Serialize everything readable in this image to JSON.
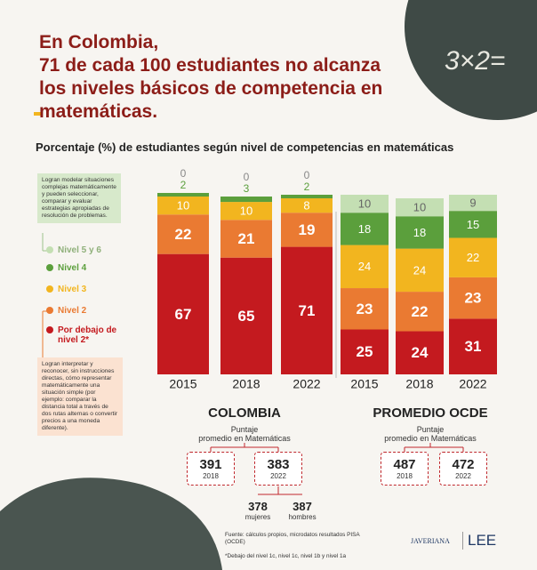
{
  "title_lines": [
    "En Colombia,",
    "71 de cada 100 estudiantes no alcanza",
    "los niveles básicos de competencia en",
    "matemáticas."
  ],
  "decor_text": "3×2=",
  "chart_data": {
    "type": "bar",
    "stacked": true,
    "subtitle": "Porcentaje (%) de estudiantes según nivel de competencias en matemáticas",
    "categories": [
      "2015",
      "2018",
      "2022",
      "2015",
      "2018",
      "2022"
    ],
    "series": [
      {
        "name": "Por debajo de nivel 2*",
        "color": "#c41a1f",
        "values": [
          67,
          65,
          71,
          25,
          24,
          31
        ]
      },
      {
        "name": "Nivel 2",
        "color": "#ea7a32",
        "values": [
          22,
          21,
          19,
          23,
          22,
          23
        ]
      },
      {
        "name": "Nivel 3",
        "color": "#f2b51f",
        "values": [
          10,
          10,
          8,
          24,
          24,
          22
        ]
      },
      {
        "name": "Nivel 4",
        "color": "#5b9f3c",
        "values": [
          2,
          3,
          2,
          18,
          18,
          15
        ]
      },
      {
        "name": "Nivel 5 y 6",
        "color": "#c4dfb3",
        "values": [
          0,
          0,
          0,
          10,
          10,
          9
        ]
      }
    ]
  },
  "notes": {
    "top": "Logran modelar situaciones complejas matemáticamente y pueden seleccionar, comparar y evaluar estrategias apropiadas de resolución de problemas.",
    "bottom": "Logran interpretar y reconocer, sin instrucciones directas, cómo representar matemáticamente una situación simple (por ejemplo: comparar la distancia total a través de dos rutas alternas o convertir precios a una moneda diferente)."
  },
  "scores": [
    {
      "title": "COLOMBIA",
      "subtitle_lines": [
        "Puntaje",
        "promedio en Matemáticas"
      ],
      "items": [
        {
          "value": 391,
          "year": "2018"
        },
        {
          "value": 383,
          "year": "2022"
        }
      ],
      "gender": [
        {
          "value": 378,
          "label": "mujeres"
        },
        {
          "value": 387,
          "label": "hombres"
        }
      ]
    },
    {
      "title": "PROMEDIO OCDE",
      "subtitle_lines": [
        "Puntaje",
        "promedio en Matemáticas"
      ],
      "items": [
        {
          "value": 487,
          "year": "2018"
        },
        {
          "value": 472,
          "year": "2022"
        }
      ]
    }
  ],
  "footer": {
    "source": "Fuente: cálculos propios, microdatos resultados PISA (OCDE)",
    "footnote": "*Debajo del nivel 1c, nivel 1c, nivel 1b y nivel 1a"
  },
  "logos": [
    "JAVERIANA",
    "LEE"
  ]
}
